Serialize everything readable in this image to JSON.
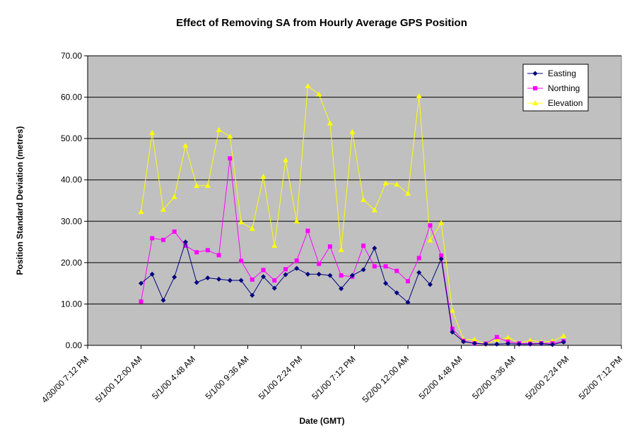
{
  "chart_data": {
    "type": "line",
    "title": "Effect of Removing SA from Hourly Average GPS Position",
    "xlabel": "Date (GMT)",
    "ylabel": "Position Standard Deviation (metres)",
    "ylim": [
      0,
      70
    ],
    "yticks": [
      "0.00",
      "10.00",
      "20.00",
      "30.00",
      "40.00",
      "50.00",
      "60.00",
      "70.00"
    ],
    "xticks": [
      "4/30/00 7:12 PM",
      "5/1/00 12:00 AM",
      "5/1/00 4:48 AM",
      "5/1/00 9:36 AM",
      "5/1/00 2:24 PM",
      "5/1/00 7:12 PM",
      "5/2/00 12:00 AM",
      "5/2/00 4:48 AM",
      "5/2/00 9:36 AM",
      "5/2/00 2:24 PM",
      "5/2/00 7:12 PM"
    ],
    "xlim": [
      "4/30/00 7:12 PM",
      "5/2/00 7:12 PM"
    ],
    "plot_background": "#c0c0c0",
    "grid": "horizontal",
    "legend_position": "top-right",
    "x": [
      "5/1/00 12:00 AM",
      "5/1/00 1:00 AM",
      "5/1/00 2:00 AM",
      "5/1/00 3:00 AM",
      "5/1/00 4:00 AM",
      "5/1/00 5:00 AM",
      "5/1/00 6:00 AM",
      "5/1/00 7:00 AM",
      "5/1/00 8:00 AM",
      "5/1/00 9:00 AM",
      "5/1/00 10:00 AM",
      "5/1/00 11:00 AM",
      "5/1/00 12:00 PM",
      "5/1/00 1:00 PM",
      "5/1/00 2:00 PM",
      "5/1/00 3:00 PM",
      "5/1/00 4:00 PM",
      "5/1/00 5:00 PM",
      "5/1/00 6:00 PM",
      "5/1/00 7:00 PM",
      "5/1/00 8:00 PM",
      "5/1/00 9:00 PM",
      "5/1/00 10:00 PM",
      "5/1/00 11:00 PM",
      "5/2/00 12:00 AM",
      "5/2/00 1:00 AM",
      "5/2/00 2:00 AM",
      "5/2/00 3:00 AM",
      "5/2/00 4:00 AM",
      "5/2/00 5:00 AM",
      "5/2/00 6:00 AM",
      "5/2/00 7:00 AM",
      "5/2/00 8:00 AM",
      "5/2/00 9:00 AM",
      "5/2/00 10:00 AM",
      "5/2/00 11:00 AM",
      "5/2/00 12:00 PM",
      "5/2/00 1:00 PM",
      "5/2/00 2:00 PM"
    ],
    "series": [
      {
        "name": "Easting",
        "color": "#000080",
        "marker": "diamond",
        "values": [
          15.0,
          17.2,
          10.9,
          16.5,
          25.0,
          15.2,
          16.3,
          16.0,
          15.7,
          15.7,
          12.1,
          16.6,
          13.8,
          17.1,
          18.6,
          17.2,
          17.2,
          16.9,
          13.7,
          16.9,
          18.3,
          23.5,
          15.0,
          12.7,
          10.4,
          17.6,
          14.7,
          20.9,
          3.2,
          0.9,
          0.5,
          0.3,
          0.3,
          0.4,
          0.3,
          0.3,
          0.4,
          0.2,
          0.8
        ]
      },
      {
        "name": "Northing",
        "color": "#ff00ff",
        "marker": "square",
        "values": [
          10.6,
          25.9,
          25.5,
          27.5,
          24.1,
          22.5,
          23.0,
          21.8,
          45.2,
          20.4,
          15.9,
          18.2,
          15.7,
          18.4,
          20.5,
          27.7,
          19.7,
          23.9,
          16.9,
          16.6,
          24.1,
          19.1,
          19.1,
          18.0,
          15.5,
          21.1,
          29.0,
          21.7,
          4.0,
          1.1,
          0.5,
          0.4,
          2.0,
          0.9,
          0.5,
          0.4,
          0.5,
          0.5,
          1.0
        ]
      },
      {
        "name": "Elevation",
        "color": "#ffff00",
        "marker": "triangle",
        "values": [
          32.3,
          51.4,
          32.8,
          35.9,
          48.3,
          38.6,
          38.6,
          52.1,
          50.5,
          29.8,
          28.2,
          40.8,
          24.1,
          44.8,
          30.0,
          62.7,
          60.7,
          53.7,
          23.1,
          51.6,
          35.2,
          32.7,
          39.2,
          38.9,
          36.7,
          60.3,
          25.4,
          29.6,
          8.4,
          1.5,
          1.4,
          0.3,
          1.4,
          1.9,
          0.6,
          1.2,
          0.8,
          1.0,
          2.3
        ]
      }
    ]
  }
}
